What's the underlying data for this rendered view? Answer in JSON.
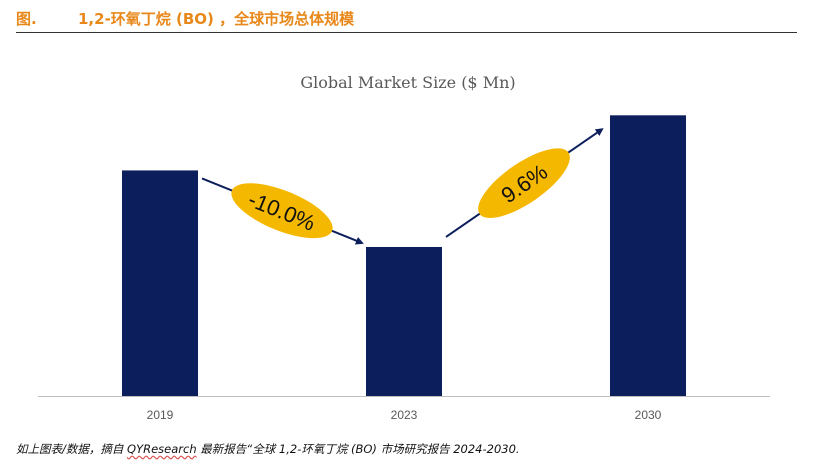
{
  "figure": {
    "label": "图.",
    "title": "1,2-环氧丁烷 (BO) ，全球市场总体规模"
  },
  "chart_data": {
    "type": "bar",
    "title": "Global Market Size ($ Mn)",
    "categories": [
      "2019",
      "2023",
      "2030"
    ],
    "values": [
      221,
      146,
      275
    ],
    "ylim": [
      0,
      290
    ],
    "grid": false,
    "legend": "none",
    "xlabel": "",
    "ylabel": "",
    "annotations": [
      {
        "label": "-10.0%",
        "from": "2019",
        "to": "2023"
      },
      {
        "label": "9.6%",
        "from": "2023",
        "to": "2030"
      }
    ]
  },
  "colors": {
    "bar": "#0c1f5c",
    "badge": "#f5b800",
    "arrow": "#0c1f5c",
    "title": "#e8881a",
    "axis": "#bfbfbf",
    "text": "#595959"
  },
  "source": {
    "prefix": "如上图表/数据，摘自 ",
    "brand": "QYResearch",
    "suffix": " 最新报告“全球 1,2-环氧丁烷 (BO) 市场研究报告 2024-2030."
  }
}
